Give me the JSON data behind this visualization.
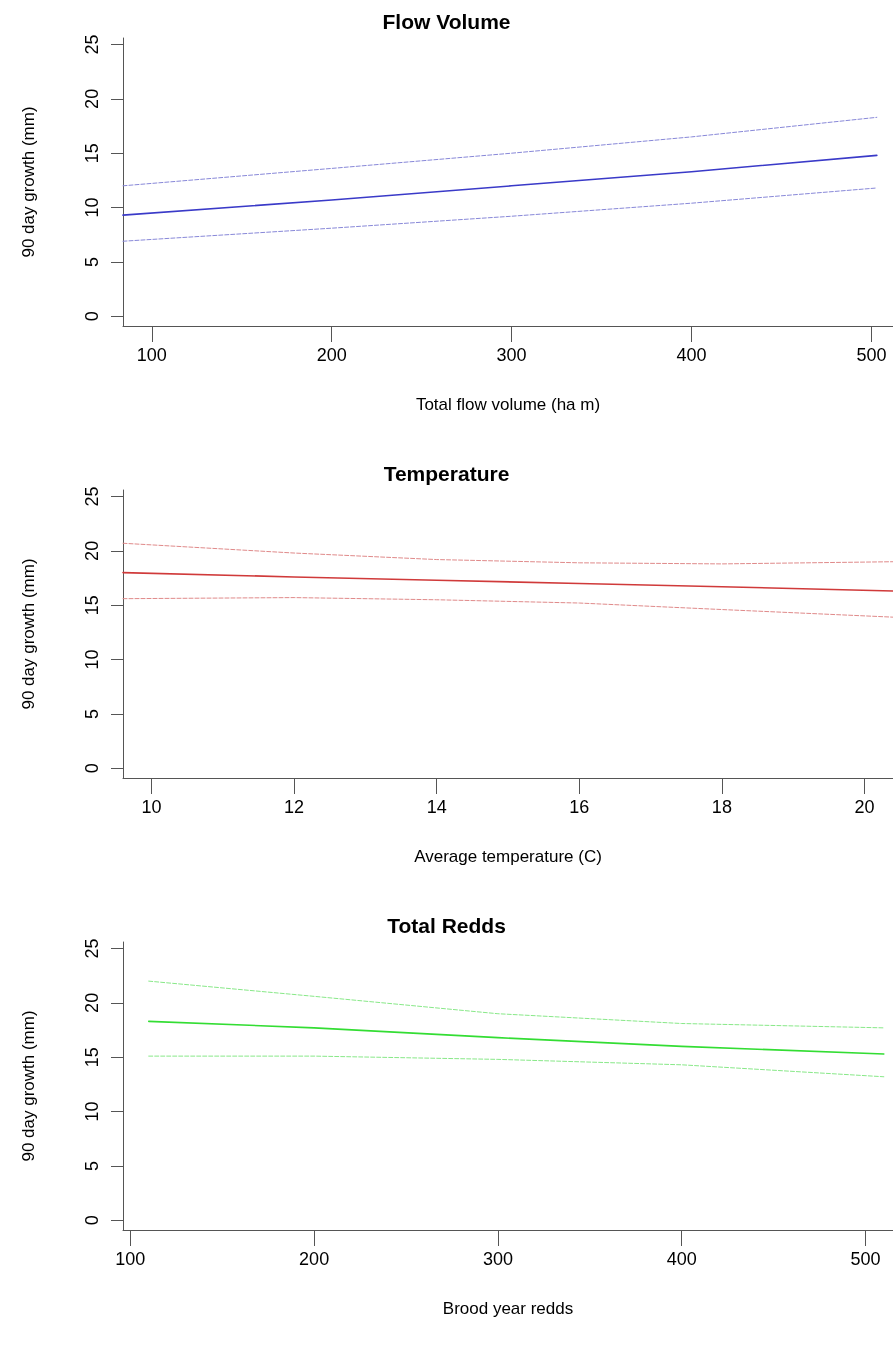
{
  "chart_data": [
    {
      "type": "line",
      "title": "Flow Volume",
      "xlabel": "Total flow volume (ha m)",
      "ylabel": "90 day growth (mm)",
      "x": [
        84,
        200,
        300,
        400,
        503
      ],
      "xlim": [
        84,
        512
      ],
      "xticks": [
        100,
        200,
        300,
        400,
        500
      ],
      "ylim": [
        -0.9,
        25.6
      ],
      "yticks": [
        0,
        5,
        10,
        15,
        20,
        25
      ],
      "grid": false,
      "marker": "none",
      "series": [
        {
          "color": "#3a3ac8",
          "line_style": "solid",
          "values": [
            9.3,
            10.7,
            12.0,
            13.3,
            14.8
          ]
        },
        {
          "color": "#8888d8",
          "line_style": "dashed",
          "values": [
            12.0,
            13.6,
            15.0,
            16.5,
            18.3
          ]
        },
        {
          "color": "#8888d8",
          "line_style": "dashed",
          "values": [
            6.9,
            8.1,
            9.2,
            10.4,
            11.8
          ]
        }
      ]
    },
    {
      "type": "line",
      "title": "Temperature",
      "xlabel": "Average temperature (C)",
      "ylabel": "90 day growth (mm)",
      "x": [
        9.6,
        12,
        14,
        16,
        18,
        20.4
      ],
      "xlim": [
        9.6,
        20.4
      ],
      "xticks": [
        10,
        12,
        14,
        16,
        18,
        20
      ],
      "ylim": [
        -0.9,
        25.6
      ],
      "yticks": [
        0,
        5,
        10,
        15,
        20,
        25
      ],
      "grid": false,
      "marker": "none",
      "series": [
        {
          "color": "#d03a3a",
          "line_style": "solid",
          "values": [
            18.0,
            17.6,
            17.3,
            17.0,
            16.7,
            16.3
          ]
        },
        {
          "color": "#e08a8a",
          "line_style": "dashed",
          "values": [
            20.7,
            19.8,
            19.2,
            18.9,
            18.8,
            19.0
          ]
        },
        {
          "color": "#e08a8a",
          "line_style": "dashed",
          "values": [
            15.6,
            15.7,
            15.5,
            15.2,
            14.6,
            13.9
          ]
        }
      ]
    },
    {
      "type": "line",
      "title": "Total Redds",
      "xlabel": "Brood year redds",
      "ylabel": "90 day growth (mm)",
      "x": [
        110,
        200,
        300,
        400,
        510
      ],
      "xlim": [
        96,
        515
      ],
      "xticks": [
        100,
        200,
        300,
        400,
        500
      ],
      "ylim": [
        -0.9,
        25.6
      ],
      "yticks": [
        0,
        5,
        10,
        15,
        20,
        25
      ],
      "grid": false,
      "marker": "none",
      "series": [
        {
          "color": "#33dd33",
          "line_style": "solid",
          "values": [
            18.3,
            17.7,
            16.8,
            16.0,
            15.3
          ]
        },
        {
          "color": "#88e888",
          "line_style": "dashed",
          "values": [
            22.0,
            20.6,
            19.0,
            18.1,
            17.7
          ]
        },
        {
          "color": "#88e888",
          "line_style": "dashed",
          "values": [
            15.1,
            15.1,
            14.8,
            14.3,
            13.2
          ]
        }
      ]
    }
  ]
}
